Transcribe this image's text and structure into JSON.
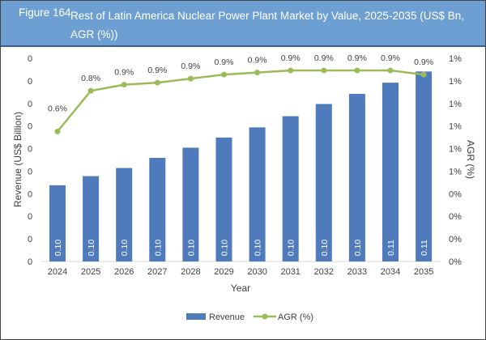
{
  "header": {
    "figure": "Figure 164",
    "title": "Rest of Latin America Nuclear Power Plant Market by Value, 2025-2035 (US$ Bn, AGR (%))"
  },
  "colors": {
    "bar": "#4f7bbd",
    "line": "#9bbb59",
    "header": "#6d9fd3"
  },
  "chart_data": {
    "type": "bar+line",
    "categories": [
      "2024",
      "2025",
      "2026",
      "2027",
      "2028",
      "2029",
      "2030",
      "2031",
      "2032",
      "2033",
      "2034",
      "2035"
    ],
    "series": [
      {
        "name": "Revenue",
        "type": "bar",
        "axis": "left",
        "values": [
          0.0955,
          0.0964,
          0.0972,
          0.0982,
          0.0992,
          0.1002,
          0.1012,
          0.1023,
          0.1035,
          0.1045,
          0.1056,
          0.1067
        ],
        "labels": [
          "0.10",
          "0.10",
          "0.10",
          "0.10",
          "0.10",
          "0.10",
          "0.10",
          "0.10",
          "0.10",
          "0.10",
          "0.11",
          "0.11"
        ]
      },
      {
        "name": "AGR (%)",
        "type": "line",
        "axis": "right",
        "values": [
          0.64,
          0.84,
          0.87,
          0.88,
          0.9,
          0.92,
          0.93,
          0.94,
          0.94,
          0.94,
          0.94,
          0.92
        ],
        "labels": [
          "0.6%",
          "0.8%",
          "0.9%",
          "0.9%",
          "0.9%",
          "0.9%",
          "0.9%",
          "0.9%",
          "0.9%",
          "0.9%",
          "0.9%",
          "0.9%"
        ]
      }
    ],
    "xlabel": "Year",
    "ylabel": "Revenue (US$ Billion)",
    "y2label": "AGR (%)",
    "ylim": [
      0.088,
      0.108
    ],
    "y2lim": [
      0,
      1.0
    ],
    "yticks": [
      "0",
      "0",
      "0",
      "0",
      "0",
      "0",
      "0",
      "0",
      "0",
      "0"
    ],
    "y2ticks": [
      "0%",
      "0%",
      "0%",
      "0%",
      "1%",
      "1%",
      "1%",
      "1%",
      "1%",
      "1%"
    ],
    "legend": "bottom",
    "grid": false
  }
}
